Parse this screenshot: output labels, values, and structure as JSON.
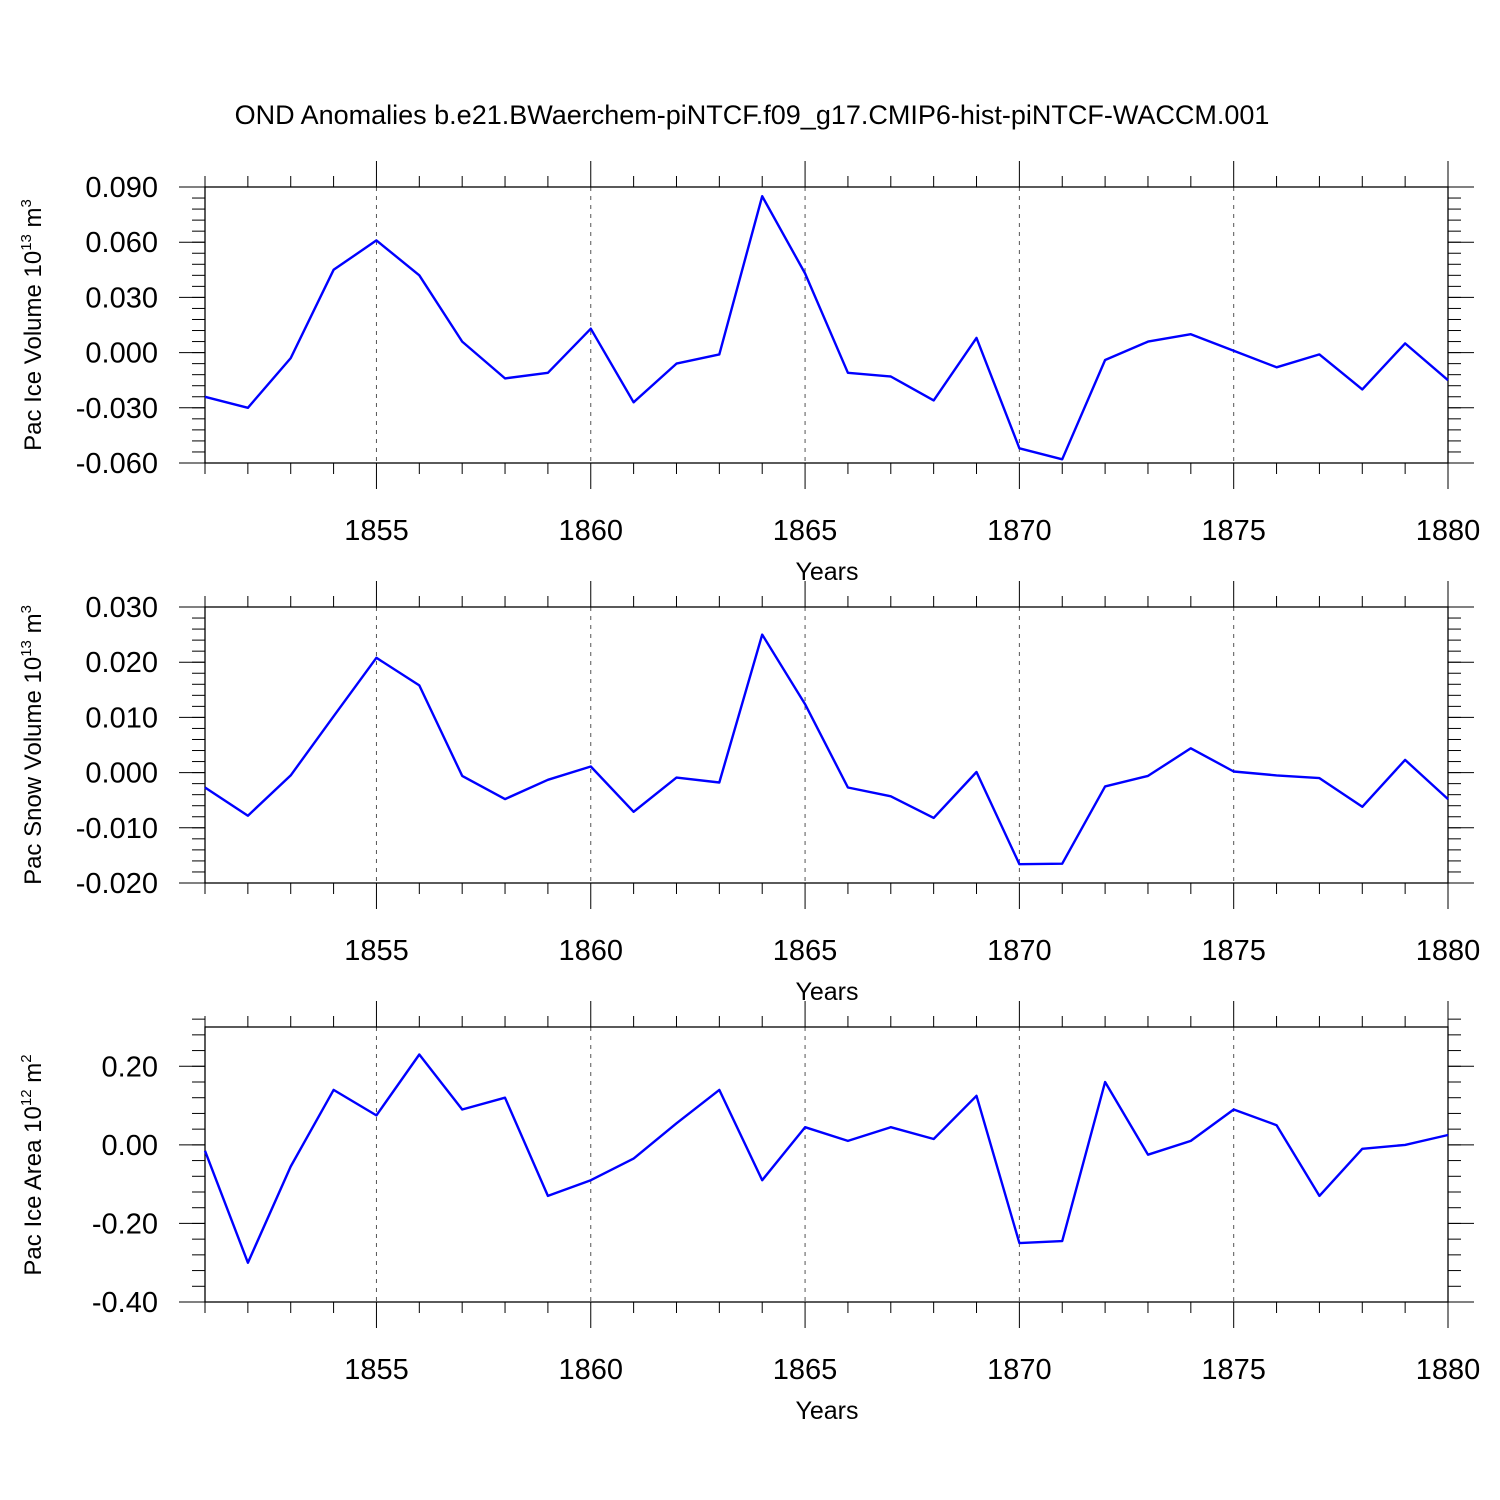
{
  "title": "OND Anomalies b.e21.BWaerchem-piNTCF.f09_g17.CMIP6-hist-piNTCF-WACCM.001",
  "chart_data": [
    {
      "type": "line",
      "ylabel": {
        "text": "Pac Ice Volume 10",
        "exp": "13",
        "unit": " m",
        "unit_exp": "3"
      },
      "xlabel": "Years",
      "xlim": [
        1851,
        1880
      ],
      "ylim": [
        -0.06,
        0.09
      ],
      "yticks": [
        -0.06,
        -0.03,
        0.0,
        0.03,
        0.06,
        0.09
      ],
      "ytick_labels": [
        "-0.060",
        "-0.030",
        "0.000",
        "0.030",
        "0.060",
        "0.090"
      ],
      "xticks": [
        1855,
        1860,
        1865,
        1870,
        1875,
        1880
      ],
      "xtick_labels": [
        "1855",
        "1860",
        "1865",
        "1870",
        "1875",
        "1880"
      ],
      "grid": "vertical dashed at major x ticks",
      "color": "#0000ff",
      "series": [
        {
          "x": [
            1851,
            1852,
            1853,
            1854,
            1855,
            1856,
            1857,
            1858,
            1859,
            1860,
            1861,
            1862,
            1863,
            1864,
            1865,
            1866,
            1867,
            1868,
            1869,
            1870,
            1871,
            1872,
            1873,
            1874,
            1875,
            1876,
            1877,
            1878,
            1879,
            1880
          ],
          "values": [
            -0.024,
            -0.03,
            -0.003,
            0.045,
            0.061,
            0.042,
            0.006,
            -0.014,
            -0.011,
            0.013,
            -0.027,
            -0.006,
            -0.001,
            0.085,
            0.043,
            -0.011,
            -0.013,
            -0.026,
            0.008,
            -0.052,
            -0.058,
            -0.004,
            0.006,
            0.01,
            0.001,
            -0.008,
            -0.001,
            -0.02,
            0.005,
            -0.015
          ]
        }
      ]
    },
    {
      "type": "line",
      "ylabel": {
        "text": "Pac Snow Volume 10",
        "exp": "13",
        "unit": " m",
        "unit_exp": "3"
      },
      "xlabel": "Years",
      "xlim": [
        1851,
        1880
      ],
      "ylim": [
        -0.02,
        0.03
      ],
      "yticks": [
        -0.02,
        -0.01,
        0.0,
        0.01,
        0.02,
        0.03
      ],
      "ytick_labels": [
        "-0.020",
        "-0.010",
        "0.000",
        "0.010",
        "0.020",
        "0.030"
      ],
      "xticks": [
        1855,
        1860,
        1865,
        1870,
        1875,
        1880
      ],
      "xtick_labels": [
        "1855",
        "1860",
        "1865",
        "1870",
        "1875",
        "1880"
      ],
      "grid": "vertical dashed at major x ticks",
      "color": "#0000ff",
      "series": [
        {
          "x": [
            1851,
            1852,
            1853,
            1854,
            1855,
            1856,
            1857,
            1858,
            1859,
            1860,
            1861,
            1862,
            1863,
            1864,
            1865,
            1866,
            1867,
            1868,
            1869,
            1870,
            1871,
            1872,
            1873,
            1874,
            1875,
            1876,
            1877,
            1878,
            1879,
            1880
          ],
          "values": [
            -0.0027,
            -0.0078,
            -0.0005,
            0.0102,
            0.0208,
            0.0158,
            -0.0006,
            -0.0048,
            -0.0013,
            0.0011,
            -0.0071,
            -0.0009,
            -0.0018,
            0.025,
            0.0124,
            -0.0027,
            -0.0043,
            -0.0082,
            0.0001,
            -0.0166,
            -0.0165,
            -0.0025,
            -0.0006,
            0.0044,
            0.0002,
            -0.0005,
            -0.001,
            -0.0062,
            0.0023,
            -0.0048
          ]
        }
      ]
    },
    {
      "type": "line",
      "ylabel": {
        "text": "Pac Ice Area 10",
        "exp": "12",
        "unit": " m",
        "unit_exp": "2"
      },
      "xlabel": "Years",
      "xlim": [
        1851,
        1880
      ],
      "ylim": [
        -0.4,
        0.3
      ],
      "yticks": [
        -0.4,
        -0.2,
        0.0,
        0.2
      ],
      "ytick_labels": [
        "-0.40",
        "-0.20",
        "0.00",
        "0.20"
      ],
      "xticks": [
        1855,
        1860,
        1865,
        1870,
        1875,
        1880
      ],
      "xtick_labels": [
        "1855",
        "1860",
        "1865",
        "1870",
        "1875",
        "1880"
      ],
      "grid": "vertical dashed at major x ticks",
      "color": "#0000ff",
      "series": [
        {
          "x": [
            1851,
            1852,
            1853,
            1854,
            1855,
            1856,
            1857,
            1858,
            1859,
            1860,
            1861,
            1862,
            1863,
            1864,
            1865,
            1866,
            1867,
            1868,
            1869,
            1870,
            1871,
            1872,
            1873,
            1874,
            1875,
            1876,
            1877,
            1878,
            1879,
            1880
          ],
          "values": [
            -0.015,
            -0.3,
            -0.055,
            0.14,
            0.075,
            0.23,
            0.09,
            0.12,
            -0.13,
            -0.09,
            -0.035,
            0.055,
            0.14,
            -0.09,
            0.045,
            0.01,
            0.045,
            0.015,
            0.125,
            -0.25,
            -0.245,
            0.16,
            -0.025,
            0.01,
            0.09,
            0.05,
            -0.13,
            -0.01,
            0.0,
            0.025
          ]
        }
      ]
    }
  ]
}
